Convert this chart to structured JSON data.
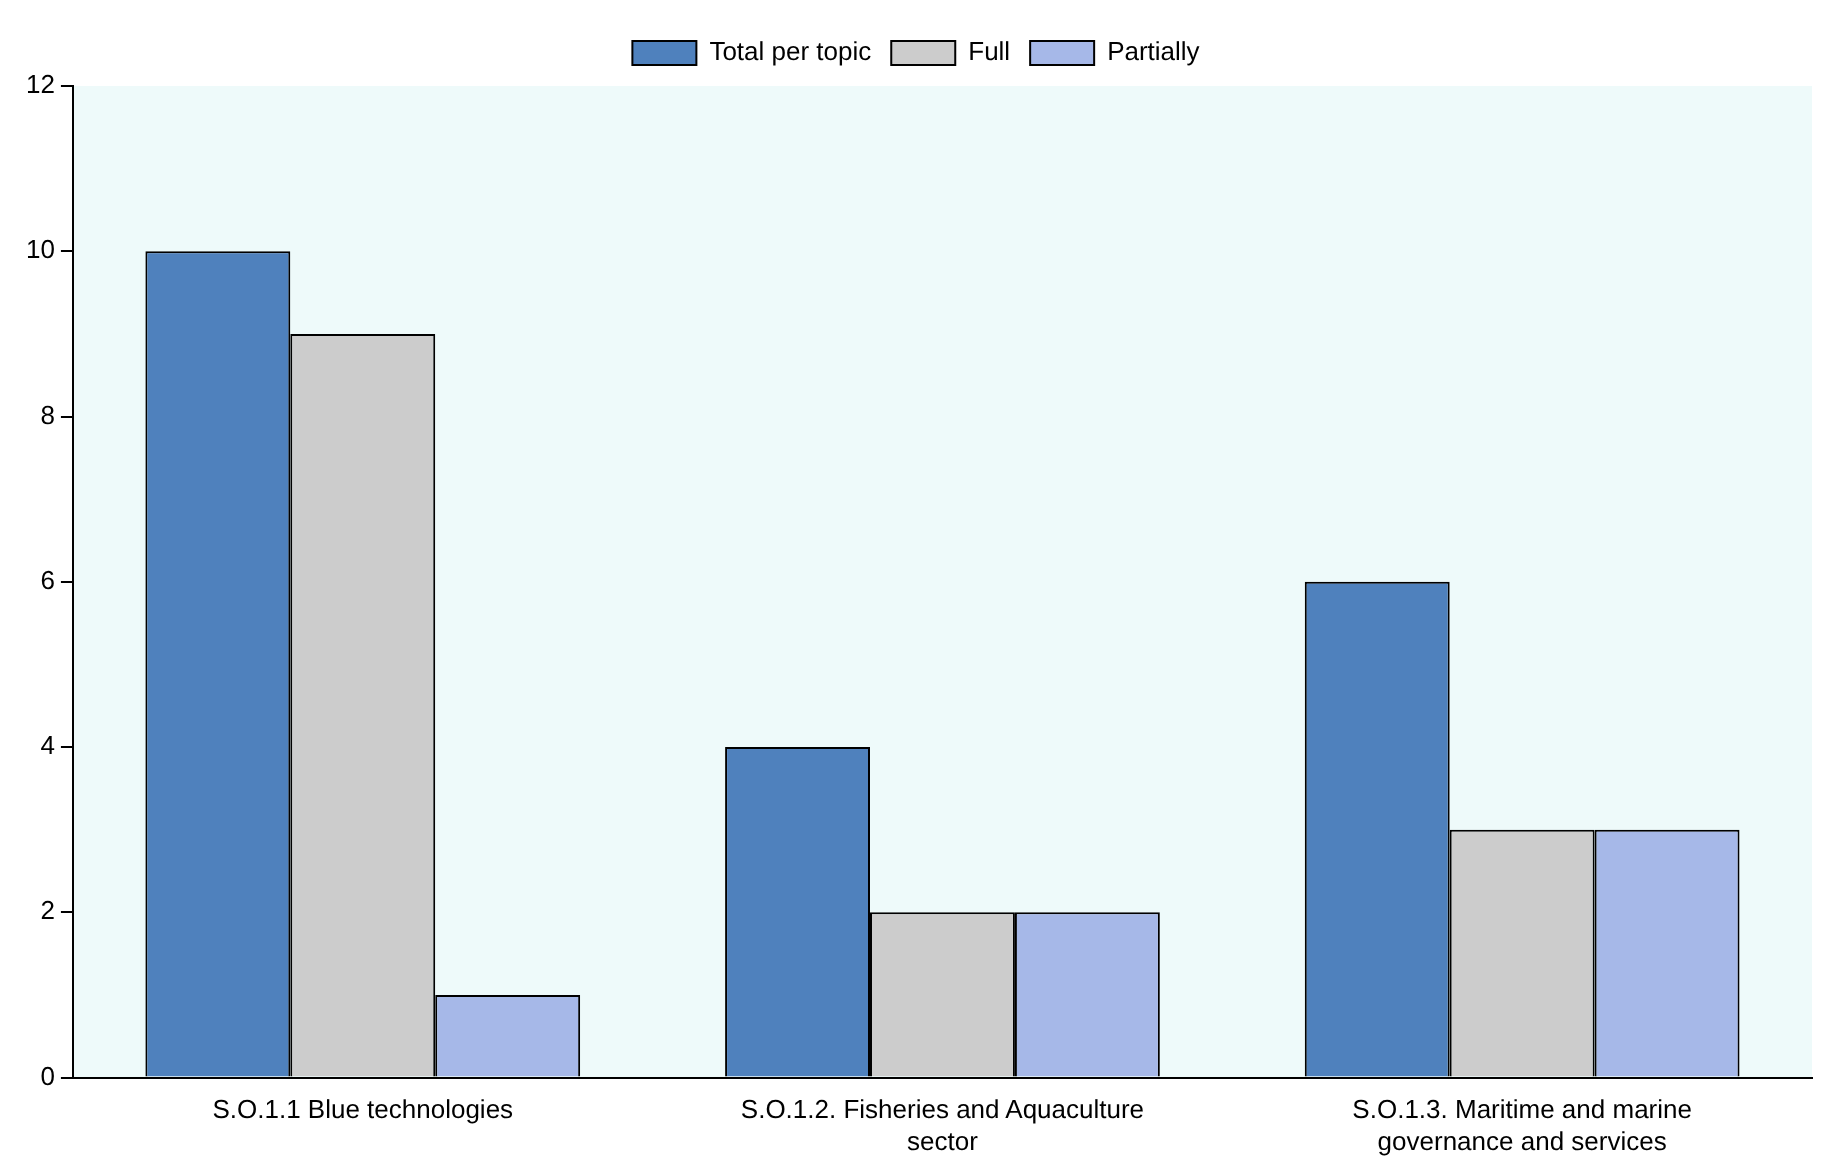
{
  "chart_data": {
    "type": "bar",
    "categories": [
      "S.O.1.1 Blue technologies",
      "S.O.1.2. Fisheries and Aquaculture sector",
      "S.O.1.3. Maritime and marine governance and services"
    ],
    "series": [
      {
        "name": "Total per topic",
        "color": "#4f81bd",
        "values": [
          10,
          4,
          6
        ]
      },
      {
        "name": "Full",
        "color": "#cccccc",
        "values": [
          9,
          2,
          3
        ]
      },
      {
        "name": "Partially",
        "color": "#a6b8e8",
        "values": [
          1,
          2,
          3
        ]
      }
    ],
    "ylim": [
      0,
      12
    ],
    "yticks": [
      0,
      2,
      4,
      6,
      8,
      10,
      12
    ],
    "grid": false,
    "legend": "top"
  }
}
